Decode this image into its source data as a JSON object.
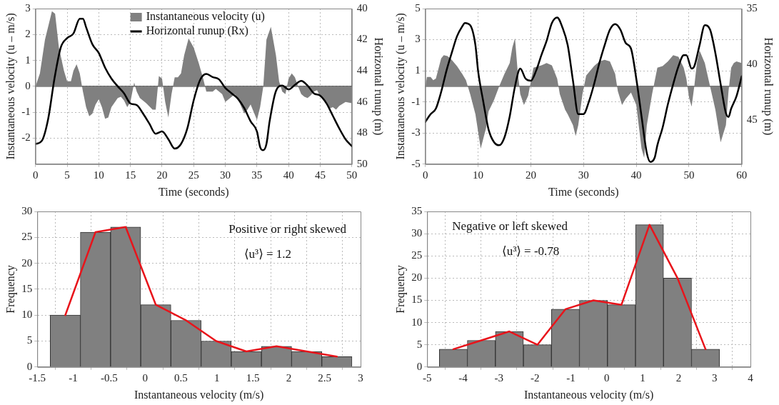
{
  "chart_data": [
    {
      "type": "area",
      "xlabel": "Time (seconds)",
      "ylabel": "Instantaneous velocity (u – m/s)",
      "y2label": "Horizontal runup (m)",
      "xlim": [
        0,
        50
      ],
      "xticks": [
        0,
        5,
        10,
        15,
        20,
        25,
        30,
        35,
        40,
        45,
        50
      ],
      "ylim": [
        -3,
        3
      ],
      "yticks": [
        -2,
        -1,
        0,
        1,
        2,
        3
      ],
      "y2lim": [
        50,
        40
      ],
      "y2ticks": [
        40,
        42,
        44,
        46,
        48,
        50
      ],
      "grid": true,
      "legend": "top",
      "ref_lines": [
        {
          "axis": "y",
          "value": 0,
          "color": "#404040"
        }
      ],
      "series": [
        {
          "type": "area",
          "name": "Instantaneous velocity (u)",
          "color": "#808080",
          "x": [
            0,
            0.7,
            1.5,
            2.6,
            3.1,
            3.7,
            4.5,
            5,
            5.6,
            6,
            6.5,
            7,
            7.5,
            8,
            8.5,
            9,
            9.5,
            10,
            10.5,
            11,
            11.5,
            12,
            13,
            13.5,
            14,
            14.5,
            15,
            15.6,
            16,
            16.5,
            17.5,
            18.5,
            19,
            19.5,
            20,
            20.5,
            21,
            21.5,
            22,
            22.5,
            23,
            23.5,
            24.2,
            25,
            25.8,
            26.5,
            27,
            28,
            28.5,
            29.5,
            30,
            31,
            31.5,
            32,
            33,
            33.5,
            34,
            35,
            35.5,
            36,
            36.5,
            37.2,
            38,
            38.5,
            39,
            39.5,
            40,
            40.5,
            41,
            41.5,
            42,
            42.5,
            43,
            43.5,
            44,
            44.5,
            45,
            46,
            46.5,
            47,
            47.5,
            48,
            49,
            50
          ],
          "values": [
            0,
            0.5,
            1.8,
            2.9,
            2.8,
            1.5,
            0.6,
            0.2,
            0.2,
            0.6,
            0.85,
            0.5,
            -0.2,
            -0.8,
            -1.15,
            -1.05,
            -0.7,
            -0.5,
            -0.8,
            -1.25,
            -1.2,
            -0.8,
            -0.45,
            -0.4,
            -0.55,
            -0.8,
            -0.6,
            0.15,
            -0.2,
            -0.45,
            -0.65,
            -0.9,
            -0.9,
            0.4,
            0.3,
            -0.6,
            -1.2,
            -0.3,
            0.35,
            0.35,
            0.5,
            1.2,
            1.85,
            1.5,
            0.9,
            0.3,
            -0.2,
            -0.2,
            -0.1,
            -0.3,
            -0.6,
            -0.4,
            -0.3,
            -0.5,
            -1.05,
            -0.9,
            -0.7,
            -1.3,
            -0.8,
            0,
            1.8,
            2.3,
            1.2,
            0.2,
            -0.2,
            -0.3,
            0.3,
            0.5,
            0.35,
            0,
            -0.3,
            -0.4,
            -0.45,
            -0.35,
            -0.2,
            -0.15,
            -0.4,
            -0.6,
            -0.85,
            -0.8,
            -0.9,
            -0.75,
            -0.6,
            -0.65
          ]
        },
        {
          "type": "line",
          "axis": "y2",
          "name": "Horizontal runup (Rx)",
          "color": "#000000",
          "x": [
            0,
            1,
            2,
            3,
            4,
            5,
            6,
            7,
            7.5,
            8,
            9,
            10,
            11,
            12,
            13,
            14,
            15,
            16,
            17,
            18,
            19,
            20,
            21,
            22,
            23,
            24,
            25,
            26,
            27,
            28,
            29,
            30,
            31,
            32,
            33,
            34,
            35,
            35.5,
            36,
            36.5,
            37,
            38,
            39,
            40,
            41,
            42,
            43,
            44,
            45,
            46,
            47,
            48,
            49,
            50
          ],
          "values": [
            48.7,
            48.5,
            47.1,
            44.5,
            42.5,
            41.9,
            41.6,
            40.65,
            40.65,
            41.2,
            42.3,
            42.85,
            43.8,
            44.5,
            45,
            45.45,
            46.1,
            46.2,
            46.75,
            47.4,
            48.05,
            47.9,
            48.4,
            49,
            48.7,
            47.7,
            45.9,
            44.6,
            44.2,
            44.4,
            44.55,
            45.1,
            45.45,
            45.8,
            46.4,
            47.25,
            47.9,
            48.9,
            49.1,
            48.7,
            47.25,
            45.3,
            44.95,
            45.2,
            44.9,
            44.65,
            44.95,
            45.45,
            45.6,
            46.1,
            46.9,
            47.7,
            48.4,
            48.85
          ]
        }
      ]
    },
    {
      "type": "area",
      "xlabel": "Time (seconds)",
      "ylabel": "Instantaneous velocity (u – m/s)",
      "y2label": "Horizontal runup (m)",
      "xlim": [
        0,
        60
      ],
      "xticks": [
        0,
        10,
        20,
        30,
        40,
        50,
        60
      ],
      "ylim": [
        -5,
        5
      ],
      "yticks": [
        -5,
        -3,
        -1,
        1,
        3,
        5
      ],
      "y2lim": [
        49,
        35
      ],
      "y2ticks": [
        35,
        40,
        45
      ],
      "grid": true,
      "ref_lines": [
        {
          "axis": "y",
          "value": 0,
          "color": "#404040"
        }
      ],
      "series": [
        {
          "type": "area",
          "color": "#808080",
          "x": [
            0,
            0.3,
            1,
            1.5,
            2,
            3,
            3.5,
            4.2,
            5,
            6,
            7,
            7.7,
            8.5,
            9.5,
            10.5,
            11.5,
            12,
            13,
            14,
            15,
            16,
            16.5,
            17,
            17.5,
            18,
            18.7,
            19.5,
            20,
            20.5,
            22,
            23,
            24,
            25,
            25.5,
            26.5,
            27,
            28,
            28.5,
            29,
            29.8,
            30.5,
            32,
            33,
            34,
            35,
            36,
            36.5,
            37.3,
            38,
            39,
            40,
            41,
            41.5,
            42,
            43,
            44,
            45,
            46,
            47,
            48,
            49,
            49.5,
            50,
            50.5,
            51,
            51.5,
            52,
            53,
            54,
            55,
            56,
            57,
            57.5,
            58,
            58.5,
            59,
            60
          ],
          "values": [
            0,
            0.6,
            0.6,
            0.4,
            0.5,
            1.8,
            2,
            1.95,
            1.7,
            1.3,
            0.8,
            0.4,
            -0.5,
            -1.8,
            -4,
            -2.7,
            -1.6,
            -0.9,
            0,
            0.8,
            1.5,
            2.5,
            3.1,
            1,
            -0.5,
            -1.2,
            -0.6,
            0.3,
            1.2,
            1.35,
            1.5,
            1.35,
            0.5,
            -0.5,
            -1.5,
            -1.8,
            -2.5,
            -3.2,
            -2.5,
            -0.5,
            0.7,
            1.3,
            1.6,
            1.7,
            1.6,
            0.8,
            -0.3,
            -1.2,
            -0.8,
            -0.4,
            -1.2,
            -4,
            -4.6,
            -2.5,
            -0.5,
            1.2,
            1.3,
            1.6,
            2,
            1.9,
            1.2,
            0.5,
            -0.7,
            -1.3,
            0,
            1.5,
            2.3,
            1.5,
            0,
            -1.5,
            -3.6,
            -2.5,
            -0.3,
            1.2,
            1.5,
            1.6,
            1.5
          ]
        },
        {
          "type": "line",
          "axis": "y2",
          "color": "#000000",
          "x": [
            0,
            1,
            2,
            3,
            4,
            5,
            6,
            7,
            7.5,
            8.5,
            9.5,
            10,
            11,
            12,
            13,
            14,
            15,
            16,
            17,
            18,
            19,
            20,
            21,
            22,
            23,
            24,
            25,
            26,
            27,
            28,
            29,
            30,
            31,
            32,
            33,
            34,
            35,
            36,
            37,
            38,
            39,
            40,
            41,
            42,
            42.7,
            43.5,
            44,
            45,
            46,
            47,
            48,
            49,
            49.5,
            50.5,
            51,
            52,
            53,
            54,
            55,
            56,
            57,
            57.5,
            58,
            59,
            60
          ],
          "values": [
            45.2,
            44.5,
            44,
            42.5,
            40.6,
            39,
            37.5,
            36.6,
            36.3,
            36.5,
            38.3,
            40.6,
            43.4,
            45.9,
            47,
            47.3,
            46.6,
            44.7,
            42,
            40.4,
            41.3,
            41.5,
            40.6,
            39.2,
            37.9,
            36.3,
            35.8,
            36.7,
            38.3,
            41.5,
            44.5,
            44.5,
            43.4,
            41.8,
            39.9,
            38.3,
            36.9,
            36.4,
            36.9,
            38.1,
            38.6,
            41.3,
            44.7,
            48,
            48.8,
            48.4,
            47.3,
            45.7,
            43.6,
            41.8,
            40.2,
            39.2,
            39.2,
            40.4,
            40.2,
            38.3,
            36.5,
            36.9,
            39,
            41.8,
            44.4,
            44.75,
            44,
            42.9,
            41.1
          ]
        }
      ]
    },
    {
      "type": "histogram",
      "xlabel": "Instantaneous velocity (m/s)",
      "ylabel": "Frequency",
      "xlim": [
        -1.5,
        3
      ],
      "xticks": [
        -1.5,
        -1,
        -0.5,
        0,
        0.5,
        1,
        1.5,
        2,
        2.5,
        3
      ],
      "ylim": [
        0,
        30
      ],
      "yticks": [
        0,
        5,
        10,
        15,
        20,
        25,
        30
      ],
      "grid": true,
      "annotations": [
        "Positive or right skewed",
        "⟨u³⟩ = 1.2"
      ],
      "series": [
        {
          "type": "histogram",
          "color": "#808080",
          "bins": [
            -1.32,
            -0.9,
            -0.48,
            -0.06,
            0.36,
            0.78,
            1.2,
            1.62,
            2.04,
            2.46,
            2.88
          ],
          "values": [
            10,
            26,
            27,
            12,
            9,
            5,
            3,
            4,
            3,
            2
          ]
        },
        {
          "type": "line",
          "color": "#e8141b",
          "x": [
            -1.11,
            -0.69,
            -0.27,
            0.15,
            0.57,
            0.99,
            1.41,
            1.83,
            2.25,
            2.67
          ],
          "values": [
            10,
            26,
            27,
            12,
            9,
            5,
            3,
            4,
            3,
            2
          ]
        }
      ]
    },
    {
      "type": "histogram",
      "xlabel": "Instantaneous velocity (m/s)",
      "ylabel": "Frequency",
      "xlim": [
        -5,
        4
      ],
      "xticks": [
        -5,
        -4,
        -3,
        -2,
        -1,
        0,
        1,
        2,
        3,
        4
      ],
      "ylim": [
        0,
        35
      ],
      "yticks": [
        0,
        5,
        10,
        15,
        20,
        25,
        30,
        35
      ],
      "grid": true,
      "annotations": [
        "Negative or left skewed",
        "⟨u³⟩ = -0.78"
      ],
      "series": [
        {
          "type": "histogram",
          "color": "#808080",
          "bins": [
            -4.66,
            -3.88,
            -3.1,
            -2.32,
            -1.54,
            -0.76,
            0.02,
            0.8,
            1.58,
            2.36,
            3.14
          ],
          "values": [
            4,
            6,
            8,
            5,
            13,
            15,
            14,
            32,
            20,
            4
          ]
        },
        {
          "type": "line",
          "color": "#e8141b",
          "x": [
            -4.27,
            -3.49,
            -2.71,
            -1.93,
            -1.15,
            -0.37,
            0.41,
            1.19,
            1.97,
            2.75
          ],
          "values": [
            4,
            6,
            8,
            5,
            13,
            15,
            14,
            32,
            20,
            4
          ]
        }
      ]
    }
  ]
}
